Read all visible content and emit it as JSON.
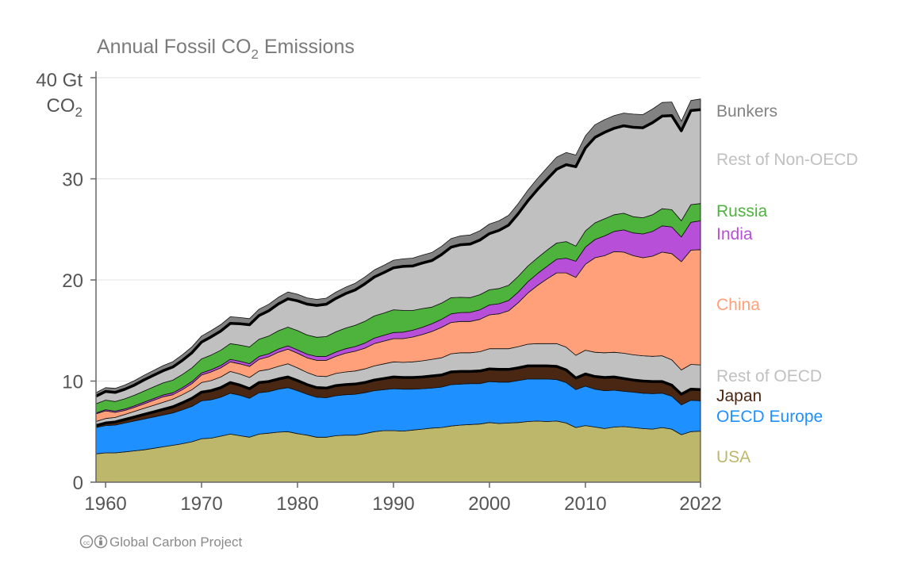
{
  "chart_data": {
    "type": "area",
    "stacked": true,
    "title_main": "Annual Fossil CO",
    "title_sub": "2",
    "title_tail": " Emissions",
    "y_unit_line1": "40 Gt",
    "y_unit_line2_main": "CO",
    "y_unit_line2_sub": "2",
    "ylim": [
      0,
      40
    ],
    "xlim": [
      1959,
      2022
    ],
    "y_ticks": [
      0,
      10,
      20,
      30
    ],
    "y_tick_labels": [
      "0",
      "10",
      "20",
      "30"
    ],
    "x_ticks": [
      1960,
      1970,
      1980,
      1990,
      2000,
      2010,
      2022
    ],
    "x_tick_labels": [
      "1960",
      "1970",
      "1980",
      "1990",
      "2000",
      "2010",
      "2022"
    ],
    "grid": "horizontal",
    "credit": "Global Carbon Project",
    "x": [
      1959,
      1960,
      1961,
      1962,
      1963,
      1964,
      1965,
      1966,
      1967,
      1968,
      1969,
      1970,
      1971,
      1972,
      1973,
      1974,
      1975,
      1976,
      1977,
      1978,
      1979,
      1980,
      1981,
      1982,
      1983,
      1984,
      1985,
      1986,
      1987,
      1988,
      1989,
      1990,
      1991,
      1992,
      1993,
      1994,
      1995,
      1996,
      1997,
      1998,
      1999,
      2000,
      2001,
      2002,
      2003,
      2004,
      2005,
      2006,
      2007,
      2008,
      2009,
      2010,
      2011,
      2012,
      2013,
      2014,
      2015,
      2016,
      2017,
      2018,
      2019,
      2020,
      2021,
      2022
    ],
    "series": [
      {
        "name": "USA",
        "color": "#bdb76b",
        "values": [
          2.8,
          2.9,
          2.9,
          3.0,
          3.1,
          3.2,
          3.35,
          3.5,
          3.65,
          3.8,
          4.0,
          4.3,
          4.35,
          4.55,
          4.75,
          4.6,
          4.45,
          4.75,
          4.85,
          4.95,
          5.0,
          4.8,
          4.65,
          4.45,
          4.45,
          4.6,
          4.65,
          4.65,
          4.8,
          5.0,
          5.1,
          5.1,
          5.05,
          5.15,
          5.25,
          5.35,
          5.4,
          5.55,
          5.65,
          5.7,
          5.75,
          5.9,
          5.8,
          5.85,
          5.9,
          6.0,
          6.05,
          6.0,
          6.05,
          5.85,
          5.4,
          5.6,
          5.45,
          5.3,
          5.45,
          5.5,
          5.4,
          5.3,
          5.25,
          5.4,
          5.25,
          4.7,
          5.0,
          5.05
        ]
      },
      {
        "name": "OECD Europe",
        "color": "#1e90ff",
        "values": [
          2.6,
          2.7,
          2.75,
          2.85,
          2.95,
          3.05,
          3.1,
          3.15,
          3.2,
          3.35,
          3.5,
          3.75,
          3.8,
          3.85,
          4.05,
          4.0,
          3.85,
          4.1,
          4.1,
          4.25,
          4.35,
          4.25,
          4.05,
          3.95,
          3.9,
          3.95,
          4.0,
          4.05,
          4.05,
          4.05,
          4.05,
          4.15,
          4.15,
          4.05,
          4.0,
          3.95,
          4.0,
          4.1,
          4.05,
          4.05,
          4.0,
          4.05,
          4.1,
          4.05,
          4.15,
          4.2,
          4.15,
          4.2,
          4.1,
          4.0,
          3.75,
          3.9,
          3.75,
          3.75,
          3.65,
          3.5,
          3.5,
          3.5,
          3.5,
          3.4,
          3.25,
          2.95,
          3.1,
          3.0
        ]
      },
      {
        "name": "Japan",
        "color": "#4a2712",
        "values": [
          0.2,
          0.25,
          0.3,
          0.35,
          0.4,
          0.45,
          0.5,
          0.55,
          0.6,
          0.7,
          0.8,
          0.85,
          0.9,
          0.95,
          1.05,
          1.0,
          0.95,
          1.0,
          1.0,
          1.0,
          1.05,
          1.0,
          0.95,
          0.95,
          0.95,
          1.0,
          1.0,
          1.0,
          1.0,
          1.05,
          1.1,
          1.15,
          1.15,
          1.15,
          1.15,
          1.2,
          1.2,
          1.25,
          1.25,
          1.2,
          1.25,
          1.25,
          1.25,
          1.25,
          1.25,
          1.3,
          1.3,
          1.3,
          1.3,
          1.25,
          1.15,
          1.2,
          1.25,
          1.3,
          1.3,
          1.25,
          1.2,
          1.2,
          1.2,
          1.15,
          1.1,
          1.05,
          1.1,
          1.1
        ]
      },
      {
        "name": "Rest of OECD",
        "color": "#c0c0c0",
        "values": [
          0.4,
          0.45,
          0.45,
          0.5,
          0.55,
          0.6,
          0.65,
          0.7,
          0.75,
          0.8,
          0.85,
          0.95,
          1.0,
          1.05,
          1.1,
          1.1,
          1.1,
          1.15,
          1.2,
          1.25,
          1.3,
          1.25,
          1.2,
          1.15,
          1.15,
          1.2,
          1.25,
          1.3,
          1.35,
          1.4,
          1.45,
          1.5,
          1.5,
          1.55,
          1.6,
          1.65,
          1.7,
          1.8,
          1.85,
          1.85,
          1.9,
          2.0,
          2.05,
          2.05,
          2.1,
          2.15,
          2.2,
          2.2,
          2.25,
          2.25,
          2.25,
          2.35,
          2.4,
          2.45,
          2.45,
          2.5,
          2.5,
          2.5,
          2.5,
          2.55,
          2.5,
          2.4,
          2.45,
          2.45
        ]
      },
      {
        "name": "China",
        "color": "#ffa07a",
        "values": [
          0.75,
          0.75,
          0.5,
          0.4,
          0.4,
          0.45,
          0.5,
          0.55,
          0.45,
          0.5,
          0.6,
          0.75,
          0.85,
          0.9,
          0.95,
          1.0,
          1.1,
          1.15,
          1.25,
          1.4,
          1.45,
          1.45,
          1.45,
          1.55,
          1.6,
          1.7,
          1.85,
          1.95,
          2.05,
          2.2,
          2.25,
          2.3,
          2.35,
          2.45,
          2.6,
          2.75,
          3.0,
          3.1,
          3.1,
          3.1,
          3.2,
          3.35,
          3.45,
          3.75,
          4.35,
          5.05,
          5.75,
          6.4,
          7.0,
          7.35,
          7.7,
          8.5,
          9.35,
          9.6,
          9.95,
          10.0,
          9.8,
          9.7,
          9.9,
          10.25,
          10.5,
          10.7,
          11.3,
          11.4
        ]
      },
      {
        "name": "India",
        "color": "#b84fd8",
        "values": [
          0.1,
          0.12,
          0.13,
          0.14,
          0.15,
          0.16,
          0.17,
          0.18,
          0.19,
          0.2,
          0.21,
          0.2,
          0.22,
          0.24,
          0.25,
          0.26,
          0.27,
          0.29,
          0.3,
          0.32,
          0.33,
          0.34,
          0.36,
          0.38,
          0.4,
          0.42,
          0.44,
          0.46,
          0.5,
          0.54,
          0.58,
          0.6,
          0.64,
          0.68,
          0.72,
          0.76,
          0.8,
          0.84,
          0.88,
          0.9,
          0.94,
          0.98,
          1.0,
          1.02,
          1.05,
          1.12,
          1.18,
          1.25,
          1.35,
          1.45,
          1.6,
          1.7,
          1.8,
          1.95,
          2.0,
          2.2,
          2.25,
          2.35,
          2.45,
          2.6,
          2.65,
          2.45,
          2.75,
          2.85
        ]
      },
      {
        "name": "Russia",
        "color": "#4db33d",
        "values": [
          0.9,
          0.95,
          0.95,
          1.0,
          1.05,
          1.1,
          1.15,
          1.2,
          1.25,
          1.3,
          1.35,
          1.4,
          1.45,
          1.5,
          1.55,
          1.6,
          1.65,
          1.7,
          1.75,
          1.8,
          1.85,
          1.9,
          1.9,
          1.9,
          1.95,
          2.0,
          2.05,
          2.1,
          2.15,
          2.2,
          2.2,
          2.25,
          2.15,
          1.95,
          1.85,
          1.65,
          1.6,
          1.6,
          1.5,
          1.45,
          1.5,
          1.5,
          1.5,
          1.5,
          1.55,
          1.55,
          1.55,
          1.6,
          1.6,
          1.65,
          1.5,
          1.6,
          1.65,
          1.7,
          1.65,
          1.65,
          1.6,
          1.6,
          1.65,
          1.7,
          1.7,
          1.6,
          1.75,
          1.7
        ]
      },
      {
        "name": "Rest of Non-OECD",
        "color": "#c0c0c0",
        "values": [
          0.75,
          0.85,
          0.9,
          0.95,
          1.0,
          1.1,
          1.15,
          1.2,
          1.3,
          1.4,
          1.5,
          1.65,
          1.8,
          1.9,
          2.0,
          2.1,
          2.2,
          2.35,
          2.5,
          2.65,
          2.8,
          2.95,
          3.05,
          3.15,
          3.2,
          3.3,
          3.4,
          3.5,
          3.7,
          3.85,
          4.0,
          4.15,
          4.35,
          4.4,
          4.5,
          4.6,
          4.8,
          5.0,
          5.2,
          5.3,
          5.4,
          5.55,
          5.75,
          5.95,
          6.2,
          6.45,
          6.75,
          7.0,
          7.3,
          7.6,
          7.85,
          8.2,
          8.45,
          8.55,
          8.55,
          8.65,
          8.85,
          8.9,
          9.1,
          9.15,
          9.3,
          8.9,
          9.3,
          9.3
        ]
      },
      {
        "name": "Bunkers",
        "color": "#828282",
        "values": [
          0.35,
          0.38,
          0.4,
          0.42,
          0.44,
          0.46,
          0.48,
          0.5,
          0.52,
          0.55,
          0.58,
          0.6,
          0.62,
          0.64,
          0.66,
          0.62,
          0.6,
          0.62,
          0.64,
          0.66,
          0.68,
          0.65,
          0.62,
          0.6,
          0.6,
          0.62,
          0.64,
          0.66,
          0.68,
          0.7,
          0.72,
          0.75,
          0.75,
          0.78,
          0.78,
          0.8,
          0.82,
          0.85,
          0.88,
          0.9,
          0.92,
          0.95,
          0.95,
          0.97,
          1.0,
          1.05,
          1.1,
          1.15,
          1.2,
          1.2,
          1.15,
          1.2,
          1.25,
          1.25,
          1.25,
          1.25,
          1.3,
          1.3,
          1.35,
          1.35,
          1.35,
          0.95,
          1.0,
          1.05
        ]
      }
    ],
    "black_line_boundaries": [
      3,
      8
    ]
  }
}
